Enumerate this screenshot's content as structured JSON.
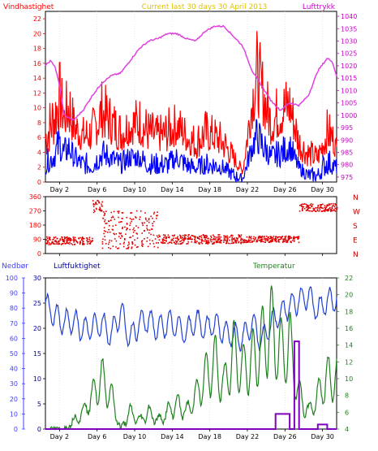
{
  "header": {
    "left_label": "Vindhastighet",
    "center_label": "Current last 30 days 30 April 2013",
    "right_label": "Lufttrykk"
  },
  "bottom_header": {
    "precip_label": "Nedbør",
    "humidity_label": "Luftfuktighet",
    "temperature_label": "Temperatur"
  },
  "colors": {
    "wind": "#ff0000",
    "wind_avg": "#0000ff",
    "pressure": "#e040e0",
    "direction": "#e00000",
    "humidity": "#2040d0",
    "temperature": "#208020",
    "precip": "#8000c0",
    "axis_left": "#ff0000",
    "axis_right": "#cc00cc",
    "nedbor": "#4040ff",
    "luftfukt": "#0000aa",
    "temp_axis": "#208020"
  },
  "chart_data": [
    {
      "type": "line",
      "title": "Current last 30 days 30 April 2013",
      "xlabel": "",
      "x_ticks": [
        "Day 2",
        "Day 6",
        "Day 10",
        "Day 14",
        "Day 18",
        "Day 22",
        "Day 26",
        "Day 30"
      ],
      "x_range": [
        0,
        31
      ],
      "y_left": {
        "label": "Vindhastighet",
        "range": [
          0,
          23
        ],
        "ticks": [
          0,
          2,
          4,
          6,
          8,
          10,
          12,
          14,
          16,
          18,
          20,
          22
        ]
      },
      "y_right": {
        "label": "Lufttrykk",
        "range": [
          973,
          1042
        ],
        "ticks": [
          975,
          980,
          985,
          990,
          995,
          1000,
          1005,
          1010,
          1015,
          1020,
          1025,
          1030,
          1035,
          1040
        ]
      },
      "series": [
        {
          "name": "Vindhastighet",
          "axis": "left",
          "x": [
            0,
            1,
            1.5,
            2,
            2.5,
            3,
            4,
            5,
            6,
            7,
            8,
            9,
            10,
            11,
            12,
            13,
            14,
            15,
            16,
            17,
            18,
            19,
            20,
            21,
            22,
            22.5,
            23,
            24,
            25,
            26,
            27,
            28,
            29,
            30,
            30.5,
            31
          ],
          "peak": [
            10,
            14,
            17,
            12,
            16,
            11,
            9,
            10,
            14,
            12,
            10,
            11,
            12,
            10,
            9,
            10,
            11,
            9,
            8,
            10,
            9,
            8,
            5,
            2,
            16,
            21,
            18,
            12,
            14,
            15,
            8,
            6,
            5,
            10,
            9,
            6
          ],
          "base": [
            3,
            5,
            7,
            6,
            6,
            5,
            4,
            4,
            6,
            5,
            4,
            5,
            5,
            4,
            4,
            4,
            5,
            4,
            3,
            4,
            4,
            3,
            2,
            1,
            7,
            9,
            8,
            5,
            6,
            7,
            3,
            2,
            2,
            4,
            4,
            3
          ]
        },
        {
          "name": "",
          "axis": "left",
          "x": [
            0,
            1,
            1.5,
            2,
            2.5,
            3,
            4,
            5,
            6,
            7,
            8,
            9,
            10,
            11,
            12,
            13,
            14,
            15,
            16,
            17,
            18,
            19,
            20,
            21,
            22,
            22.5,
            23,
            24,
            25,
            26,
            27,
            28,
            29,
            30,
            30.5,
            31
          ],
          "peak": [
            4,
            6,
            8,
            6,
            7,
            5,
            4,
            4,
            6,
            5,
            4,
            5,
            5,
            4,
            4,
            4,
            5,
            4,
            3,
            4,
            4,
            3,
            2,
            1,
            7,
            9,
            8,
            5,
            6,
            7,
            3,
            2,
            2,
            5,
            4,
            3
          ],
          "base": [
            1,
            2,
            3,
            2,
            3,
            2,
            1,
            1,
            2,
            2,
            1,
            2,
            2,
            1,
            1,
            1,
            2,
            1,
            1,
            1,
            1,
            1,
            0,
            0,
            3,
            4,
            3,
            2,
            2,
            3,
            1,
            0,
            0,
            1,
            1,
            1
          ]
        },
        {
          "name": "Lufttrykk",
          "axis": "right",
          "x": [
            0,
            0.5,
            1,
            1.5,
            2,
            3,
            4,
            5,
            6,
            7,
            8,
            9,
            10,
            11,
            12,
            13,
            14,
            15,
            16,
            17,
            18,
            19,
            20,
            21,
            22,
            23,
            24,
            25,
            26,
            27,
            28,
            29,
            30,
            30.5,
            31
          ],
          "y": [
            1020,
            1022,
            1020,
            1012,
            1000,
            998,
            1002,
            1008,
            1013,
            1016,
            1017,
            1022,
            1027,
            1030,
            1031,
            1033,
            1033,
            1031,
            1030,
            1034,
            1036,
            1036,
            1032,
            1028,
            1018,
            1012,
            1006,
            1002,
            1005,
            1004,
            1008,
            1018,
            1023,
            1022,
            1016
          ]
        }
      ]
    },
    {
      "type": "scatter",
      "title": "",
      "x_ticks": [],
      "x_range": [
        0,
        31
      ],
      "y_left": {
        "label": "",
        "range": [
          0,
          360
        ],
        "ticks": [
          0,
          90,
          180,
          270,
          360
        ]
      },
      "y_right": {
        "label": "",
        "ticks": [
          "N",
          "W",
          "S",
          "E",
          "N"
        ]
      },
      "series": [
        {
          "name": "",
          "bands": [
            {
              "from": 0,
              "to": 5,
              "y": 80,
              "spread": 25
            },
            {
              "from": 5,
              "to": 6,
              "y": 300,
              "spread": 40
            },
            {
              "from": 6,
              "to": 12,
              "y": 150,
              "spread": 120
            },
            {
              "from": 12,
              "to": 21,
              "y": 90,
              "spread": 30
            },
            {
              "from": 21,
              "to": 27,
              "y": 90,
              "spread": 20
            },
            {
              "from": 27,
              "to": 31,
              "y": 290,
              "spread": 25
            }
          ]
        }
      ]
    },
    {
      "type": "line",
      "title": "",
      "x_ticks": [
        "Day 2",
        "Day 6",
        "Day 10",
        "Day 14",
        "Day 18",
        "Day 22",
        "Day 26",
        "Day 30"
      ],
      "x_range": [
        0,
        31
      ],
      "y_left_outer": {
        "label": "Nedbør",
        "range": [
          0,
          100
        ],
        "ticks": [
          0,
          10,
          20,
          30,
          40,
          50,
          60,
          70,
          80,
          90,
          100
        ]
      },
      "y_left_inner": {
        "label": "Luftfuktighet",
        "range": [
          0,
          30
        ],
        "ticks": [
          0,
          5,
          10,
          15,
          20,
          25,
          30
        ]
      },
      "y_right": {
        "label": "Temperatur",
        "range": [
          4,
          22
        ],
        "ticks": [
          4,
          6,
          8,
          10,
          12,
          14,
          16,
          18,
          20,
          22
        ]
      },
      "series": [
        {
          "name": "Luftfuktighet",
          "axis": "left_outer",
          "x": [
            0,
            1,
            2,
            3,
            4,
            5,
            6,
            7,
            8,
            9,
            10,
            11,
            12,
            13,
            14,
            15,
            16,
            17,
            18,
            19,
            20,
            21,
            22,
            23,
            24,
            25,
            26,
            27,
            28,
            29,
            30,
            31
          ],
          "y": [
            82,
            75,
            70,
            72,
            65,
            68,
            70,
            62,
            78,
            60,
            70,
            72,
            66,
            70,
            68,
            64,
            72,
            66,
            70,
            64,
            62,
            60,
            70,
            58,
            70,
            76,
            82,
            85,
            88,
            78,
            85,
            86
          ]
        },
        {
          "name": "Temperatur",
          "axis": "right",
          "x": [
            0,
            1,
            2,
            3,
            4,
            5,
            6,
            7,
            8,
            9,
            10,
            11,
            12,
            13,
            14,
            15,
            16,
            17,
            18,
            19,
            20,
            21,
            22,
            23,
            24,
            25,
            26,
            27,
            28,
            29,
            30,
            31
          ],
          "y": [
            4,
            4,
            4,
            5,
            6,
            8,
            10,
            8,
            4,
            6,
            5,
            6,
            5,
            6,
            7,
            6,
            8,
            10,
            12,
            9,
            13,
            11,
            12,
            14,
            16,
            13,
            14,
            8,
            6,
            8,
            10,
            10
          ]
        },
        {
          "name": "Nedbør",
          "axis": "left_outer",
          "x": [
            0,
            1,
            2,
            3,
            4,
            5,
            6,
            7,
            8,
            9,
            10,
            11,
            12,
            13,
            14,
            15,
            16,
            17,
            18,
            19,
            20,
            21,
            22,
            23,
            24,
            24.5,
            25,
            26,
            26.5,
            27,
            28,
            29,
            30,
            31
          ],
          "y": [
            0,
            0,
            0,
            0,
            0,
            0,
            0,
            0,
            0,
            0,
            0,
            0,
            0,
            0,
            0,
            0,
            0,
            0,
            0,
            0,
            0,
            0,
            0,
            0,
            0,
            10,
            10,
            0,
            58,
            0,
            0,
            3,
            0,
            0
          ]
        }
      ]
    }
  ]
}
